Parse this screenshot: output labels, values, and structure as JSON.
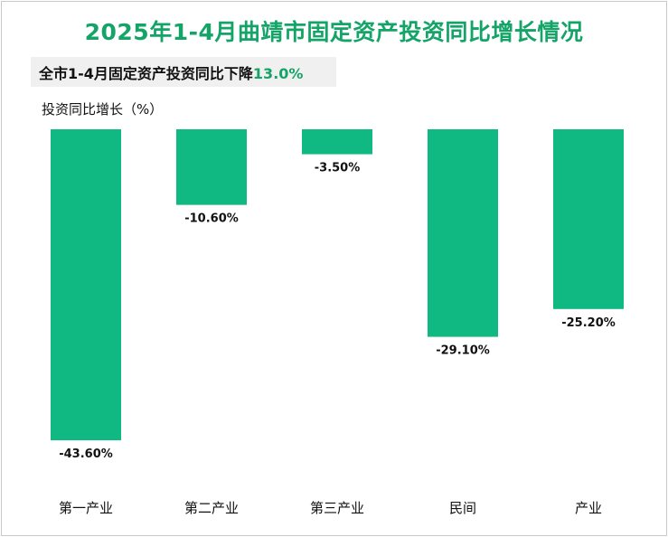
{
  "title": "2025年1-4月曲靖市固定资产投资同比增长情况",
  "summary": {
    "text": "全市1-4月固定资产投资同比下降",
    "value": "13.0%"
  },
  "colors": {
    "bar": "#10b981",
    "accent": "#14a468"
  },
  "chart_data": {
    "type": "bar",
    "ylabel": "投资同比增长（%）",
    "categories": [
      "第一产业",
      "第二产业",
      "第三产业",
      "民间",
      "产业"
    ],
    "values": [
      -43.6,
      -10.6,
      -3.5,
      -29.1,
      -25.2
    ],
    "data_labels": [
      "-43.60%",
      "-10.60%",
      "-3.50%",
      "-29.10%",
      "-25.20%"
    ],
    "ylim": [
      -43.6,
      0
    ],
    "grid": false,
    "legend": "none"
  }
}
